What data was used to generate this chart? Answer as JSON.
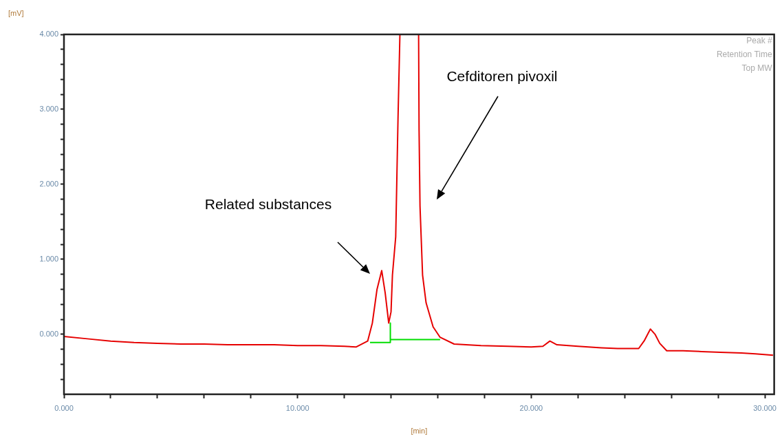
{
  "chart_data": {
    "type": "line",
    "xlabel": "[min]",
    "ylabel": "[mV]",
    "xlim": [
      0,
      30.4
    ],
    "ylim": [
      -0.8,
      4
    ],
    "xticks": [
      {
        "value": 0,
        "label": "0.000"
      },
      {
        "value": 2,
        "label": null
      },
      {
        "value": 4,
        "label": null
      },
      {
        "value": 6,
        "label": null
      },
      {
        "value": 8,
        "label": null
      },
      {
        "value": 10,
        "label": "10.000"
      },
      {
        "value": 12,
        "label": null
      },
      {
        "value": 14,
        "label": null
      },
      {
        "value": 16,
        "label": null
      },
      {
        "value": 18,
        "label": null
      },
      {
        "value": 20,
        "label": "20.000"
      },
      {
        "value": 22,
        "label": null
      },
      {
        "value": 24,
        "label": null
      },
      {
        "value": 26,
        "label": null
      },
      {
        "value": 28,
        "label": null
      },
      {
        "value": 30,
        "label": "30.000"
      }
    ],
    "yticks": [
      {
        "value": -0.6,
        "label": null
      },
      {
        "value": -0.4,
        "label": null
      },
      {
        "value": -0.2,
        "label": null
      },
      {
        "value": 0,
        "label": "0.000"
      },
      {
        "value": 0.2,
        "label": null
      },
      {
        "value": 0.4,
        "label": null
      },
      {
        "value": 0.6,
        "label": null
      },
      {
        "value": 0.8,
        "label": null
      },
      {
        "value": 1,
        "label": "1.000"
      },
      {
        "value": 1.2,
        "label": null
      },
      {
        "value": 1.4,
        "label": null
      },
      {
        "value": 1.6,
        "label": null
      },
      {
        "value": 1.8,
        "label": null
      },
      {
        "value": 2,
        "label": "2.000"
      },
      {
        "value": 2.2,
        "label": null
      },
      {
        "value": 2.4,
        "label": null
      },
      {
        "value": 2.6,
        "label": null
      },
      {
        "value": 2.8,
        "label": null
      },
      {
        "value": 3,
        "label": "3.000"
      },
      {
        "value": 3.2,
        "label": null
      },
      {
        "value": 3.4,
        "label": null
      },
      {
        "value": 3.6,
        "label": null
      },
      {
        "value": 3.8,
        "label": null
      },
      {
        "value": 4,
        "label": "4.000"
      }
    ],
    "series": [
      {
        "color": "#e60000",
        "x": [
          0,
          1,
          2,
          3,
          4,
          5,
          6,
          7,
          8,
          9,
          10,
          11,
          12,
          12.5,
          13.0,
          13.2,
          13.4,
          13.6,
          13.75,
          13.9,
          14.0,
          14.06,
          14.2,
          14.3,
          14.38,
          14.8,
          15.18,
          15.2,
          15.24,
          15.35,
          15.5,
          15.8,
          16.1,
          16.7,
          17.85,
          19,
          20,
          20.5,
          20.8,
          21.1,
          22,
          23,
          23.7,
          24.6,
          24.85,
          25.1,
          25.3,
          25.5,
          25.8,
          26.5,
          27.3,
          28.1,
          29,
          29.6,
          30.35
        ],
        "values": [
          -0.03,
          -0.06,
          -0.09,
          -0.11,
          -0.12,
          -0.13,
          -0.13,
          -0.14,
          -0.14,
          -0.14,
          -0.15,
          -0.15,
          -0.16,
          -0.17,
          -0.09,
          0.15,
          0.6,
          0.85,
          0.55,
          0.15,
          0.3,
          0.79,
          1.3,
          2.9,
          4.0,
          null,
          4.0,
          2.72,
          1.71,
          0.79,
          0.42,
          0.1,
          -0.04,
          -0.13,
          -0.15,
          -0.16,
          -0.17,
          -0.16,
          -0.09,
          -0.14,
          -0.16,
          -0.18,
          -0.19,
          -0.19,
          -0.08,
          0.07,
          0.0,
          -0.12,
          -0.22,
          -0.22,
          -0.23,
          -0.24,
          -0.25,
          -0.26,
          -0.28
        ]
      },
      {
        "color": "#00dd00",
        "x": [
          13.1,
          13.97,
          13.97,
          13.97,
          16.1
        ],
        "values": [
          -0.11,
          -0.11,
          0.15,
          -0.07,
          -0.07
        ]
      }
    ],
    "annotations": [
      "Related substances",
      "Cefditoren pivoxil",
      "Peak #",
      "Retention Time",
      "Top MW"
    ]
  }
}
